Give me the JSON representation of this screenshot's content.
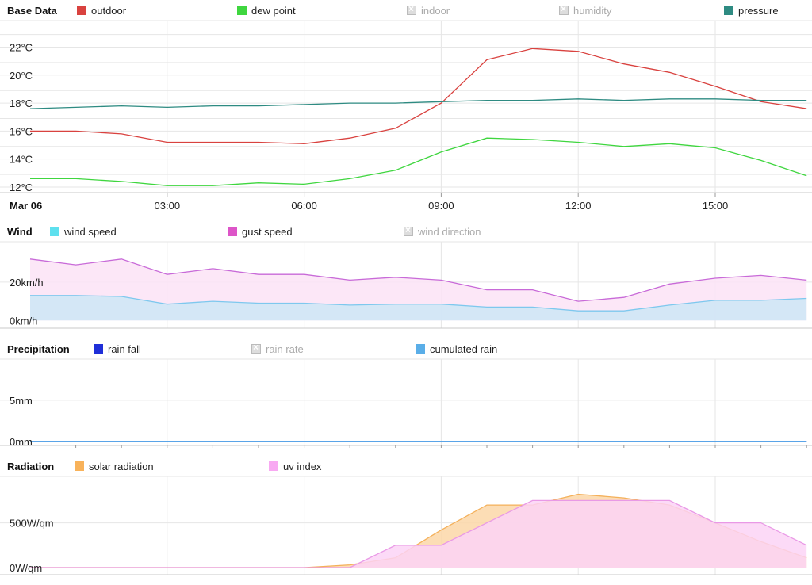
{
  "sections": {
    "base": {
      "title": "Base Data"
    },
    "wind": {
      "title": "Wind"
    },
    "precip": {
      "title": "Precipitation"
    },
    "radiation": {
      "title": "Radiation"
    }
  },
  "chart_data": [
    {
      "id": "base",
      "type": "line",
      "title": "Base Data",
      "legend": [
        {
          "name": "outdoor",
          "color": "#d9423f",
          "enabled": true
        },
        {
          "name": "dew point",
          "color": "#3fd63f",
          "enabled": true
        },
        {
          "name": "indoor",
          "color": "#cccccc",
          "enabled": false
        },
        {
          "name": "humidity",
          "color": "#cccccc",
          "enabled": false
        },
        {
          "name": "pressure",
          "color": "#2e8b82",
          "enabled": true
        }
      ],
      "x": [
        0,
        1,
        2,
        3,
        4,
        5,
        6,
        7,
        8,
        9,
        10,
        11,
        12,
        13,
        14,
        15,
        16,
        17
      ],
      "x_ticks": [
        {
          "x": 3,
          "label": "03:00"
        },
        {
          "x": 6,
          "label": "06:00"
        },
        {
          "x": 9,
          "label": "09:00"
        },
        {
          "x": 12,
          "label": "12:00"
        },
        {
          "x": 15,
          "label": "15:00"
        }
      ],
      "date_label": "Mar 06",
      "y_ticks": [
        {
          "v": 12,
          "label": "12°C"
        },
        {
          "v": 14,
          "label": "14°C"
        },
        {
          "v": 16,
          "label": "16°C"
        },
        {
          "v": 18,
          "label": "18°C"
        },
        {
          "v": 20,
          "label": "20°C"
        },
        {
          "v": 22,
          "label": "22°C"
        }
      ],
      "ylim": [
        11.6,
        23.9
      ],
      "series": [
        {
          "name": "outdoor",
          "color": "#d9423f",
          "values": [
            16.0,
            16.0,
            15.8,
            15.2,
            15.2,
            15.2,
            15.1,
            15.5,
            16.2,
            18.0,
            21.1,
            21.9,
            21.7,
            20.8,
            20.2,
            19.2,
            18.1,
            17.6
          ]
        },
        {
          "name": "dew point",
          "color": "#3fd63f",
          "values": [
            12.6,
            12.6,
            12.4,
            12.1,
            12.1,
            12.3,
            12.2,
            12.6,
            13.2,
            14.5,
            15.5,
            15.4,
            15.2,
            14.9,
            15.1,
            14.8,
            13.9,
            12.8
          ]
        },
        {
          "name": "pressure",
          "color": "#2e8b82",
          "values": [
            17.6,
            17.7,
            17.8,
            17.7,
            17.8,
            17.8,
            17.9,
            18.0,
            18.0,
            18.1,
            18.2,
            18.2,
            18.3,
            18.2,
            18.3,
            18.3,
            18.2,
            18.2
          ]
        }
      ]
    },
    {
      "id": "wind",
      "type": "area",
      "title": "Wind",
      "legend": [
        {
          "name": "wind speed",
          "color": "#5ee0ee",
          "enabled": true
        },
        {
          "name": "gust speed",
          "color": "#dd55c8",
          "enabled": true
        },
        {
          "name": "wind direction",
          "color": "#cccccc",
          "enabled": false
        }
      ],
      "x": [
        0,
        1,
        2,
        3,
        4,
        5,
        6,
        7,
        8,
        9,
        10,
        11,
        12,
        13,
        14,
        15,
        16,
        17
      ],
      "y_ticks": [
        {
          "v": 0,
          "label": "0km/h"
        },
        {
          "v": 20,
          "label": "20km/h"
        }
      ],
      "ylim": [
        -4,
        41
      ],
      "series": [
        {
          "name": "gust speed",
          "color": "#c86ad8",
          "fill": "#fbe3f6",
          "values": [
            32,
            29,
            32,
            24,
            27,
            24,
            24,
            21,
            22.5,
            21,
            16,
            16,
            10,
            12,
            19,
            22,
            23.5,
            21
          ]
        },
        {
          "name": "wind speed",
          "color": "#7ec8ee",
          "fill": "#cce6f6",
          "values": [
            13,
            13,
            12.5,
            8.5,
            10,
            9,
            9,
            8,
            8.5,
            8.5,
            7,
            7,
            5,
            5,
            8,
            10.5,
            10.5,
            11.5
          ]
        }
      ]
    },
    {
      "id": "precip",
      "type": "area",
      "title": "Precipitation",
      "legend": [
        {
          "name": "rain fall",
          "color": "#1f2fd8",
          "enabled": true
        },
        {
          "name": "rain rate",
          "color": "#cccccc",
          "enabled": false
        },
        {
          "name": "cumulated rain",
          "color": "#5aaee8",
          "enabled": true
        }
      ],
      "x": [
        0,
        1,
        2,
        3,
        4,
        5,
        6,
        7,
        8,
        9,
        10,
        11,
        12,
        13,
        14,
        15,
        16,
        17
      ],
      "y_ticks": [
        {
          "v": 0,
          "label": "0mm"
        },
        {
          "v": 5,
          "label": "5mm"
        }
      ],
      "ylim": [
        -0.5,
        10
      ],
      "series": [
        {
          "name": "rain fall",
          "color": "#1f2fd8",
          "values": [
            0,
            0,
            0,
            0,
            0,
            0,
            0,
            0,
            0,
            0,
            0,
            0,
            0,
            0,
            0,
            0,
            0,
            0
          ]
        },
        {
          "name": "cumulated rain",
          "color": "#5aaee8",
          "values": [
            0,
            0,
            0,
            0,
            0,
            0,
            0,
            0,
            0,
            0,
            0,
            0,
            0,
            0,
            0,
            0,
            0,
            0
          ]
        }
      ]
    },
    {
      "id": "radiation",
      "type": "area",
      "title": "Radiation",
      "legend": [
        {
          "name": "solar radiation",
          "color": "#f8b25a",
          "enabled": true
        },
        {
          "name": "uv index",
          "color": "#f8a9f2",
          "enabled": true
        }
      ],
      "x": [
        0,
        1,
        2,
        3,
        4,
        5,
        6,
        7,
        8,
        9,
        10,
        11,
        12,
        13,
        14,
        15,
        16,
        17
      ],
      "y_ticks": [
        {
          "v": 0,
          "label": "0W/qm"
        },
        {
          "v": 500,
          "label": "500W/qm"
        }
      ],
      "ylim": [
        -80,
        1020
      ],
      "series": [
        {
          "name": "solar radiation",
          "color": "#f4b05a",
          "fill": "#fbd7a8",
          "values": [
            0,
            0,
            0,
            0,
            0,
            0,
            0,
            30,
            110,
            420,
            700,
            700,
            820,
            780,
            700,
            500,
            290,
            110
          ]
        },
        {
          "name": "uv index",
          "color": "#e999e6",
          "fill": "#fbd4f6",
          "values": [
            0,
            0,
            0,
            0,
            0,
            0,
            0,
            0,
            250,
            250,
            500,
            750,
            750,
            750,
            750,
            500,
            500,
            250
          ]
        }
      ]
    }
  ]
}
